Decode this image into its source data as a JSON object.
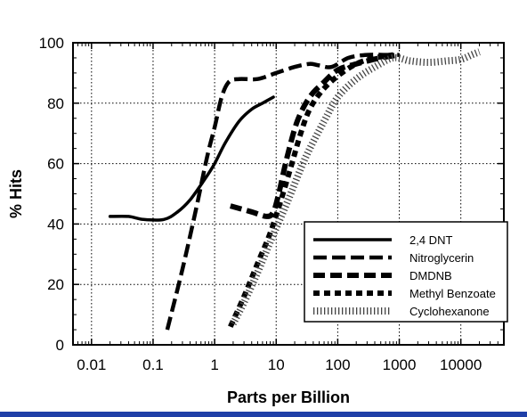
{
  "chart_data": {
    "type": "line",
    "xlabel": "Parts per Billion",
    "ylabel": "% Hits",
    "xscale": "log",
    "xlim": [
      0.005,
      50000
    ],
    "ylim": [
      0,
      100
    ],
    "x_ticks": [
      0.01,
      0.1,
      1,
      10,
      100,
      1000,
      10000
    ],
    "x_tick_labels": [
      "0.01",
      "0.1",
      "1",
      "10",
      "100",
      "1000",
      "10000"
    ],
    "y_ticks": [
      0,
      20,
      40,
      60,
      80,
      100
    ],
    "y_tick_labels": [
      "0",
      "20",
      "40",
      "60",
      "80",
      "100"
    ],
    "grid": true,
    "legend_position": "bottom-right",
    "series": [
      {
        "name": "2,4 DNT",
        "style": "solid",
        "points": [
          [
            0.02,
            42.5
          ],
          [
            0.04,
            42.5
          ],
          [
            0.07,
            41.5
          ],
          [
            0.15,
            41.5
          ],
          [
            0.25,
            44
          ],
          [
            0.4,
            48
          ],
          [
            0.7,
            55
          ],
          [
            1.0,
            60
          ],
          [
            1.5,
            67
          ],
          [
            2.5,
            74
          ],
          [
            4,
            78
          ],
          [
            6,
            80
          ],
          [
            9,
            82
          ]
        ]
      },
      {
        "name": "Nitroglycerin",
        "style": "dash",
        "points": [
          [
            0.17,
            5
          ],
          [
            0.3,
            25
          ],
          [
            0.5,
            45
          ],
          [
            0.75,
            62
          ],
          [
            1.0,
            72
          ],
          [
            1.3,
            82
          ],
          [
            1.7,
            87
          ],
          [
            2.5,
            88
          ],
          [
            5,
            88
          ],
          [
            10,
            90
          ],
          [
            20,
            92
          ],
          [
            35,
            93
          ],
          [
            50,
            92.5
          ],
          [
            80,
            92
          ],
          [
            150,
            95
          ],
          [
            300,
            96
          ],
          [
            600,
            96
          ],
          [
            1000,
            96
          ]
        ]
      },
      {
        "name": "DMDNB",
        "style": "heavy-dash",
        "points": [
          [
            1.8,
            46
          ],
          [
            4,
            44
          ],
          [
            7,
            42.5
          ],
          [
            9,
            44
          ],
          [
            11,
            50
          ],
          [
            15,
            62
          ],
          [
            22,
            74
          ],
          [
            35,
            82
          ],
          [
            60,
            87
          ],
          [
            100,
            91
          ],
          [
            200,
            93
          ],
          [
            500,
            95
          ],
          [
            1000,
            96
          ]
        ]
      },
      {
        "name": "Methyl Benzoate",
        "style": "dot",
        "points": [
          [
            1.8,
            6
          ],
          [
            3,
            16
          ],
          [
            5,
            27
          ],
          [
            8,
            37
          ],
          [
            12,
            48
          ],
          [
            18,
            60
          ],
          [
            25,
            70
          ],
          [
            35,
            78
          ],
          [
            55,
            84
          ],
          [
            100,
            89
          ],
          [
            200,
            93
          ],
          [
            400,
            95
          ],
          [
            800,
            96
          ]
        ]
      },
      {
        "name": "Cyclohexanone",
        "style": "fine-dot",
        "points": [
          [
            2.0,
            7
          ],
          [
            3,
            14
          ],
          [
            5,
            24
          ],
          [
            8,
            34
          ],
          [
            15,
            47
          ],
          [
            30,
            62
          ],
          [
            60,
            74
          ],
          [
            100,
            82
          ],
          [
            200,
            88
          ],
          [
            400,
            92
          ],
          [
            800,
            95
          ],
          [
            1500,
            94
          ],
          [
            3000,
            93.5
          ],
          [
            6000,
            94
          ],
          [
            10000,
            94.5
          ],
          [
            15000,
            96
          ],
          [
            20000,
            97
          ]
        ]
      }
    ]
  },
  "colors": {
    "bottom_bar": "#1f3fa8",
    "line": "#000000",
    "grid": "#000000"
  }
}
